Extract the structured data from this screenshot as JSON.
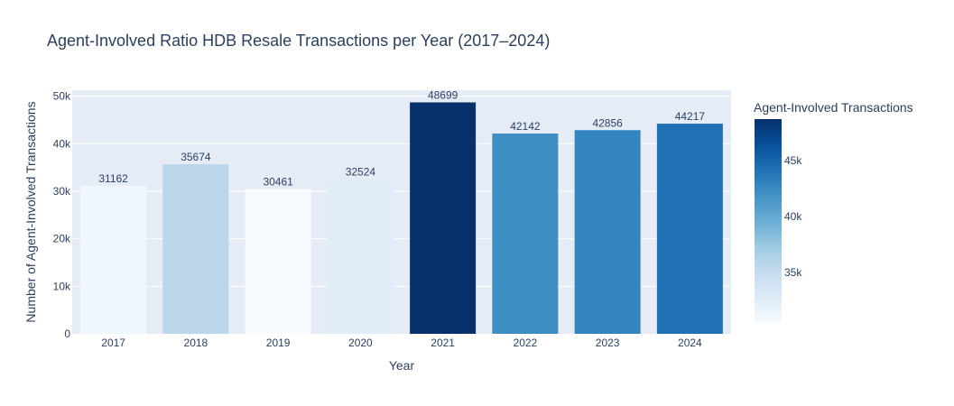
{
  "chart_data": {
    "type": "bar",
    "title": "Agent-Involved Ratio HDB Resale Transactions per Year (2017–2024)",
    "xlabel": "Year",
    "ylabel": "Number of Agent-Involved Transactions",
    "categories": [
      "2017",
      "2018",
      "2019",
      "2020",
      "2021",
      "2022",
      "2023",
      "2024"
    ],
    "values": [
      31162,
      35674,
      30461,
      32524,
      48699,
      42142,
      42856,
      44217
    ],
    "ylim": [
      0,
      51260
    ],
    "yticks": [
      0,
      10000,
      20000,
      30000,
      40000,
      50000
    ],
    "ytick_labels": [
      "0",
      "10k",
      "20k",
      "30k",
      "40k",
      "50k"
    ],
    "grid": true,
    "colorbar": {
      "title": "Agent-Involved Transactions",
      "colorscale": "Blues",
      "range": [
        30461,
        48699
      ],
      "ticks": [
        35000,
        40000,
        45000
      ],
      "tick_labels": [
        "35k",
        "40k",
        "45k"
      ]
    },
    "colors": {
      "plot_bg": "#e5ecf6",
      "grid": "#ffffff",
      "text": "#2a3f5f"
    }
  }
}
